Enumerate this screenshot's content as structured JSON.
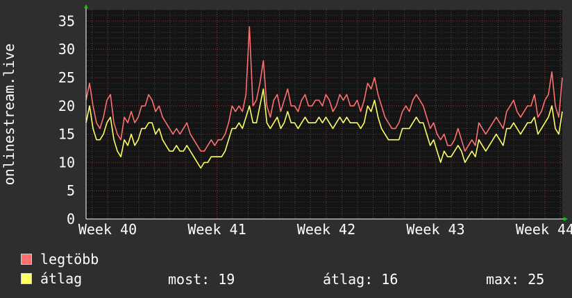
{
  "chart_data": {
    "type": "line",
    "ylabel": "onlinestream.live",
    "ylim": [
      0,
      37
    ],
    "yticks": [
      0,
      5,
      10,
      15,
      20,
      25,
      30,
      35
    ],
    "xticks": [
      "Week 40",
      "Week 41",
      "Week 42",
      "Week 43",
      "Week 44"
    ],
    "grid": true,
    "colors": {
      "background": "#2e2e2e",
      "plot": "#141414",
      "max": "#ff7070",
      "avg": "#ffff66"
    },
    "series": [
      {
        "name": "legtöbb",
        "color": "#ff7070",
        "values": [
          21,
          24,
          20,
          17,
          16,
          18,
          21,
          22,
          17,
          15,
          14,
          18,
          17,
          19,
          17,
          18,
          20,
          20,
          22,
          21,
          19,
          20,
          18,
          17,
          16,
          15,
          16,
          15,
          16,
          17,
          15,
          14,
          13,
          12,
          12,
          13,
          14,
          13,
          14,
          14,
          15,
          17,
          20,
          19,
          20,
          19,
          22,
          34,
          20,
          21,
          24,
          28,
          20,
          18,
          21,
          22,
          19,
          21,
          23,
          20,
          20,
          19,
          21,
          22,
          20,
          20,
          21,
          21,
          20,
          22,
          21,
          19,
          20,
          22,
          21,
          22,
          20,
          20,
          21,
          19,
          21,
          24,
          23,
          25,
          22,
          20,
          18,
          17,
          16,
          16,
          17,
          19,
          20,
          19,
          21,
          22,
          21,
          20,
          18,
          16,
          17,
          15,
          14,
          15,
          13,
          13,
          14,
          16,
          14,
          12,
          13,
          14,
          13,
          17,
          16,
          15,
          16,
          17,
          18,
          17,
          16,
          19,
          20,
          21,
          19,
          18,
          19,
          20,
          20,
          22,
          18,
          19,
          21,
          22,
          26,
          20,
          18,
          25
        ]
      },
      {
        "name": "átlag",
        "color": "#ffff66",
        "values": [
          17,
          20,
          16,
          14,
          14,
          15,
          17,
          18,
          14,
          12,
          11,
          14,
          13,
          15,
          13,
          14,
          16,
          16,
          17,
          17,
          15,
          16,
          14,
          13,
          12,
          12,
          13,
          12,
          12,
          13,
          12,
          11,
          10,
          9,
          10,
          10,
          11,
          11,
          11,
          11,
          12,
          14,
          16,
          16,
          17,
          16,
          18,
          20,
          17,
          17,
          20,
          23,
          17,
          16,
          17,
          18,
          16,
          17,
          19,
          17,
          17,
          16,
          17,
          18,
          17,
          17,
          17,
          18,
          17,
          18,
          17,
          16,
          17,
          18,
          17,
          18,
          17,
          17,
          17,
          16,
          17,
          20,
          19,
          21,
          18,
          16,
          15,
          14,
          14,
          14,
          14,
          16,
          16,
          16,
          17,
          18,
          17,
          17,
          15,
          13,
          14,
          12,
          10,
          12,
          11,
          11,
          12,
          13,
          12,
          10,
          11,
          12,
          11,
          14,
          13,
          12,
          13,
          14,
          15,
          14,
          13,
          16,
          16,
          17,
          16,
          15,
          16,
          17,
          17,
          18,
          15,
          16,
          17,
          18,
          20,
          16,
          15,
          19
        ]
      }
    ]
  },
  "legend": [
    {
      "label": "legtöbb",
      "color": "#ff7070"
    },
    {
      "label": "átlag",
      "color": "#ffff66"
    }
  ],
  "stats": {
    "now": "most: 19",
    "avg": "átlag: 16",
    "max": "max: 25"
  }
}
